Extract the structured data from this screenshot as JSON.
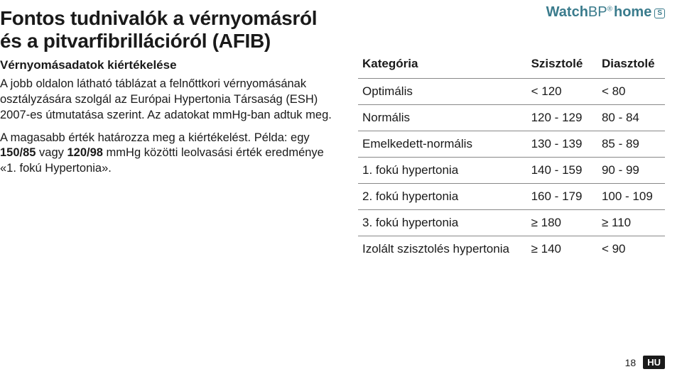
{
  "brand": {
    "part1": "Watch",
    "part2": "BP",
    "reg": "®",
    "home": "home",
    "s": "S"
  },
  "title": "Fontos tudnivalók a vérnyomásról és a pitvarfibrillációról (AFIB)",
  "subtitle": "Vérnyomásadatok kiértékelése",
  "para1": "A jobb oldalon látható táblázat a felnőttkori vérnyomásának osztályzására szolgál az Európai Hypertonia Társaság (ESH) 2007-es útmutatása szerint. Az adatokat mmHg-ban adtuk meg.",
  "para2_a": "A magasabb érték határozza meg a kiértékelést. Példa: egy ",
  "para2_b1": "150/85",
  "para2_mid": " vagy ",
  "para2_b2": "120/98",
  "para2_c": " mmHg közötti leolvasási érték eredménye «1. fokú Hypertonia».",
  "table": {
    "headers": [
      "Kategória",
      "Szisztolé",
      "Diasztolé"
    ],
    "rows": [
      [
        "Optimális",
        "< 120",
        "< 80"
      ],
      [
        "Normális",
        "120 - 129",
        "80 - 84"
      ],
      [
        "Emelkedett-normális",
        "130 - 139",
        "85 - 89"
      ],
      [
        "1. fokú hypertonia",
        "140 - 159",
        "90 - 99"
      ],
      [
        "2. fokú hypertonia",
        "160 - 179",
        "100 - 109"
      ],
      [
        "3. fokú hypertonia",
        "≥ 180",
        "≥ 110"
      ],
      [
        "Izolált szisztolés hypertonia",
        "≥ 140",
        "< 90"
      ]
    ]
  },
  "footer": {
    "page": "18",
    "lang": "HU"
  }
}
